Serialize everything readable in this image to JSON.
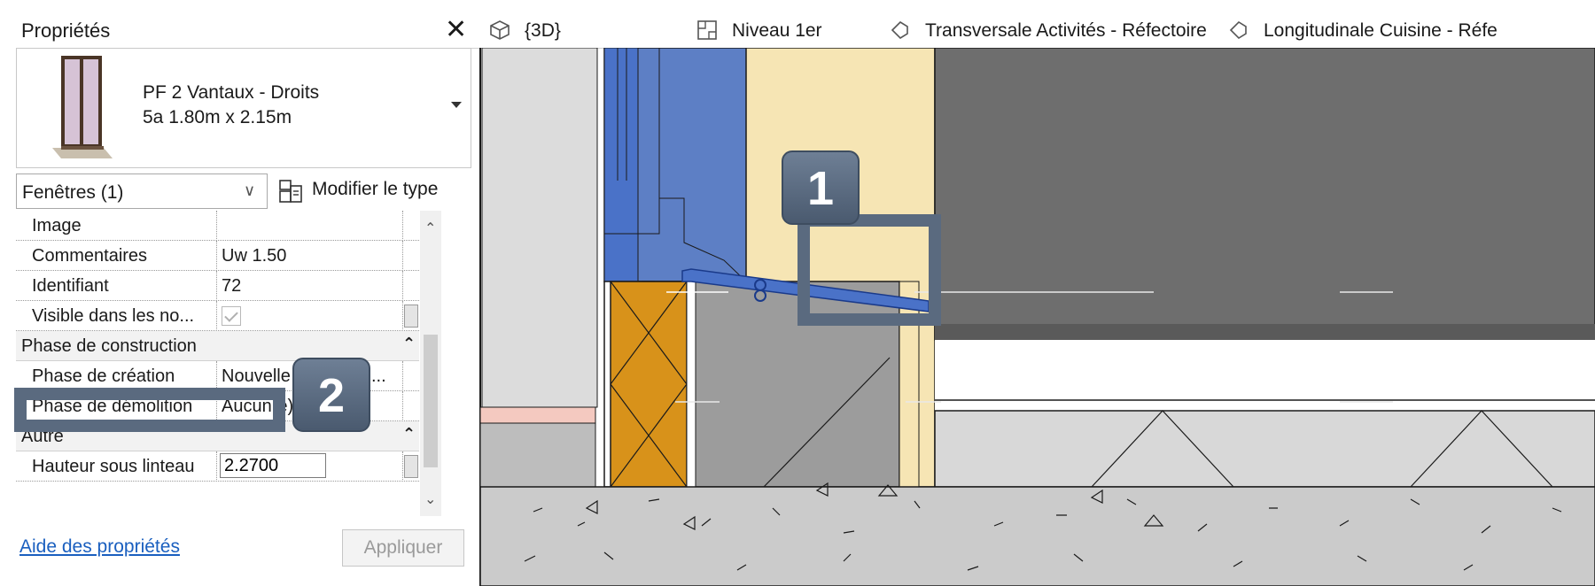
{
  "palette": {
    "title": "Propriétés",
    "close_icon": "close-icon",
    "type": {
      "thumbnail_icon": "window-thumbnail-icon",
      "name_line1": "PF 2 Vantaux - Droits",
      "name_line2": "5a 1.80m x 2.15m"
    },
    "filter": {
      "selected": "Fenêtres (1)"
    },
    "edit_type_label": "Modifier le type",
    "rows": {
      "image": {
        "key": "Image",
        "value": ""
      },
      "commentaires": {
        "key": "Commentaires",
        "value": "Uw 1.50"
      },
      "identifiant": {
        "key": "Identifiant",
        "value": "72"
      },
      "visible": {
        "key": "Visible dans les no...",
        "checked": true
      },
      "phase_group": "Phase de construction",
      "phase_creation": {
        "key": "Phase de création",
        "value": "Nouvelle constructi..."
      },
      "phase_demolition": {
        "key": "Phase de démolition",
        "value": "Aucun(e)"
      },
      "autre_group": "Autre",
      "hauteur": {
        "key": "Hauteur sous linteau",
        "value": "2.2700"
      }
    },
    "help_link": "Aide des propriétés",
    "apply_label": "Appliquer"
  },
  "tabs": [
    {
      "label": "{3D}",
      "icon": "cube-3d-icon"
    },
    {
      "label": "Niveau 1er",
      "icon": "floor-plan-icon"
    },
    {
      "label": "Transversale Activités - Réfectoire",
      "icon": "section-view-icon"
    },
    {
      "label": "Longitudinale Cuisine - Réfe",
      "icon": "section-view-icon"
    }
  ],
  "callouts": {
    "badge1": "1",
    "badge2": "2"
  },
  "colors": {
    "window_blue": "#4a72c8",
    "wall_beige": "#f6e5b4",
    "dark_gray": "#6e6e6e",
    "insulation_orange": "#d8921a",
    "callout": "#5a6a7f"
  }
}
